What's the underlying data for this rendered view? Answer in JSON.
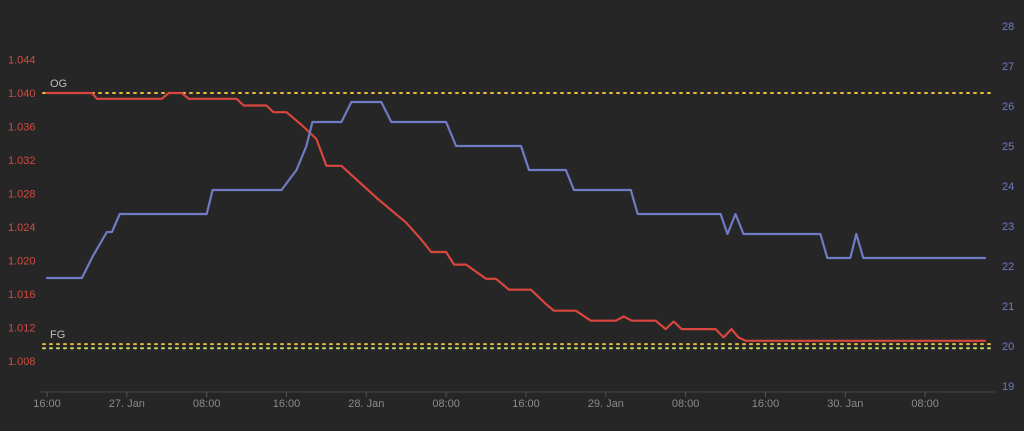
{
  "chart_data": {
    "type": "line",
    "title": "",
    "xlabel": "",
    "x_tick_labels": [
      "16:00",
      "27. Jan",
      "08:00",
      "16:00",
      "28. Jan",
      "08:00",
      "16:00",
      "29. Jan",
      "08:00",
      "16:00",
      "30. Jan",
      "08:00"
    ],
    "x_tick_hours": [
      0,
      8,
      16,
      24,
      32,
      40,
      48,
      56,
      64,
      72,
      80,
      88
    ],
    "x_range_hours": [
      0,
      94
    ],
    "y_left": {
      "label": "",
      "range": [
        1.005,
        1.048
      ],
      "ticks": [
        "1.008",
        "1.012",
        "1.016",
        "1.020",
        "1.024",
        "1.028",
        "1.032",
        "1.036",
        "1.040",
        "1.044"
      ],
      "color": "#cf4b42"
    },
    "y_right": {
      "label": "",
      "range": [
        19,
        28
      ],
      "ticks": [
        "19",
        "20",
        "21",
        "22",
        "23",
        "24",
        "25",
        "26",
        "27",
        "28"
      ],
      "color": "#6f7bc5"
    },
    "reference_lines": [
      {
        "label": "OG",
        "value": 1.04,
        "color": "#e5b83a"
      },
      {
        "label": "FG",
        "value": 1.01,
        "color": "#e5b83a"
      },
      {
        "label": "",
        "value": 1.0095,
        "color": "#c9d86a"
      }
    ],
    "series": [
      {
        "name": "",
        "axis": "left",
        "color": "#d8463d",
        "points": [
          [
            0,
            1.04
          ],
          [
            4.5,
            1.04
          ],
          [
            5,
            1.0393
          ],
          [
            11.5,
            1.0393
          ],
          [
            12.2,
            1.04
          ],
          [
            13.5,
            1.04
          ],
          [
            14.2,
            1.0393
          ],
          [
            19,
            1.0393
          ],
          [
            19.7,
            1.0385
          ],
          [
            22,
            1.0385
          ],
          [
            22.7,
            1.0377
          ],
          [
            24,
            1.0377
          ],
          [
            25.5,
            1.0362
          ],
          [
            27,
            1.0345
          ],
          [
            28,
            1.0313
          ],
          [
            29.5,
            1.0313
          ],
          [
            33,
            1.0275
          ],
          [
            36,
            1.0245
          ],
          [
            37.5,
            1.0225
          ],
          [
            38.5,
            1.021
          ],
          [
            40,
            1.021
          ],
          [
            40.8,
            1.0195
          ],
          [
            42,
            1.0195
          ],
          [
            44,
            1.0178
          ],
          [
            45,
            1.0178
          ],
          [
            46.3,
            1.0165
          ],
          [
            48.5,
            1.0165
          ],
          [
            50,
            1.0148
          ],
          [
            50.8,
            1.014
          ],
          [
            53,
            1.014
          ],
          [
            54.5,
            1.0128
          ],
          [
            57,
            1.0128
          ],
          [
            57.8,
            1.0133
          ],
          [
            58.6,
            1.0128
          ],
          [
            61,
            1.0128
          ],
          [
            62,
            1.0118
          ],
          [
            62.8,
            1.0127
          ],
          [
            63.6,
            1.0118
          ],
          [
            67,
            1.0118
          ],
          [
            67.8,
            1.0108
          ],
          [
            68.6,
            1.0118
          ],
          [
            69.3,
            1.0108
          ],
          [
            70,
            1.0104
          ],
          [
            94,
            1.0104
          ]
        ]
      },
      {
        "name": "",
        "axis": "right",
        "color": "#6f7bc5",
        "points": [
          [
            0,
            21.7
          ],
          [
            3.5,
            21.7
          ],
          [
            4.6,
            22.25
          ],
          [
            6,
            22.85
          ],
          [
            6.5,
            22.85
          ],
          [
            7.3,
            23.3
          ],
          [
            16,
            23.3
          ],
          [
            16.6,
            23.9
          ],
          [
            23.5,
            23.9
          ],
          [
            25,
            24.4
          ],
          [
            26,
            25.0
          ],
          [
            26.6,
            25.6
          ],
          [
            29.5,
            25.6
          ],
          [
            30.5,
            26.1
          ],
          [
            33.5,
            26.1
          ],
          [
            34.5,
            25.6
          ],
          [
            40,
            25.6
          ],
          [
            41,
            25.0
          ],
          [
            47.5,
            25.0
          ],
          [
            48.3,
            24.4
          ],
          [
            52,
            24.4
          ],
          [
            52.8,
            23.9
          ],
          [
            58.5,
            23.9
          ],
          [
            59.2,
            23.3
          ],
          [
            67.5,
            23.3
          ],
          [
            68.2,
            22.8
          ],
          [
            69,
            23.3
          ],
          [
            69.8,
            22.8
          ],
          [
            77.5,
            22.8
          ],
          [
            78.2,
            22.2
          ],
          [
            80.5,
            22.2
          ],
          [
            81.1,
            22.8
          ],
          [
            81.8,
            22.2
          ],
          [
            94,
            22.2
          ]
        ]
      }
    ],
    "grid": false,
    "legend": "none"
  }
}
